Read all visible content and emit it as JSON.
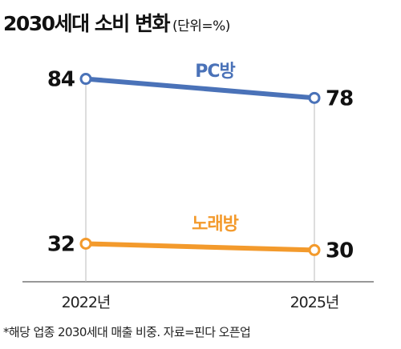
{
  "title": "2030세대 소비 변화",
  "unit": "(단위=%)",
  "footnote": "*해당 업종 2030세대 매출 비중. 자료=핀다 오픈업",
  "chart_data": {
    "type": "line",
    "categories": [
      "2022년",
      "2025년"
    ],
    "series": [
      {
        "name": "PC방",
        "values": [
          84,
          78
        ],
        "color": "#4a72b8"
      },
      {
        "name": "노래방",
        "values": [
          32,
          30
        ],
        "color": "#f39a2c"
      }
    ],
    "ylim": [
      20,
      95
    ],
    "grid": false,
    "legend": "inline labels"
  }
}
